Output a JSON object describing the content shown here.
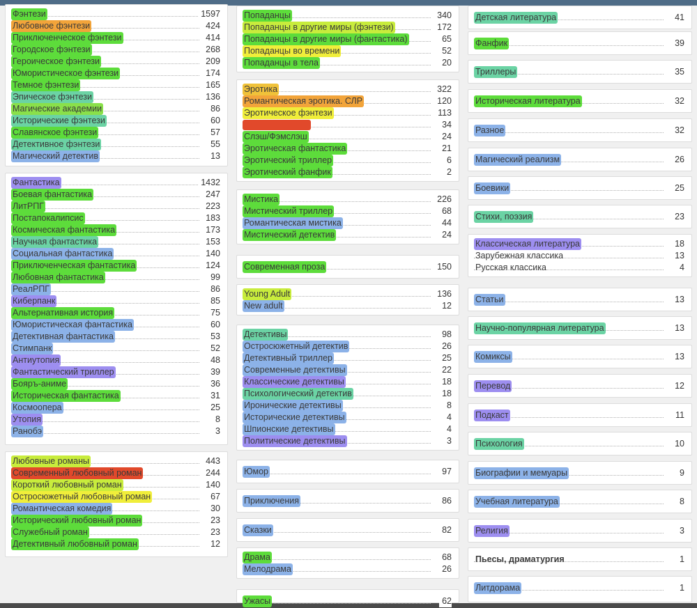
{
  "colors": {
    "green": "#5ddc3b",
    "lightgreen": "#8ae04a",
    "yellowgreen": "#c8ec3c",
    "yellow": "#f0ee3a",
    "orange": "#f2a43a",
    "red": "#e1492b",
    "teal": "#6bd3a4",
    "blue": "#8cb2e8",
    "lightblue": "#a9c9f1",
    "violet": "#9d8ef0"
  },
  "columns": [
    {
      "blocks": [
        {
          "items": [
            {
              "name": "Фэнтези",
              "count": "1597",
              "color": "#5ddc3b"
            },
            {
              "name": "Любовное фэнтези",
              "count": "424",
              "color": "#f2a43a"
            },
            {
              "name": "Приключенческое фэнтези",
              "count": "414",
              "color": "#5ddc3b"
            },
            {
              "name": "Городское фэнтези",
              "count": "268",
              "color": "#5ddc3b"
            },
            {
              "name": "Героическое фэнтези",
              "count": "209",
              "color": "#5ddc3b"
            },
            {
              "name": "Юмористическое фэнтези",
              "count": "174",
              "color": "#5ddc3b"
            },
            {
              "name": "Темное фэнтези",
              "count": "165",
              "color": "#5ddc3b"
            },
            {
              "name": "Эпическое фэнтези",
              "count": "136",
              "color": "#6bd3a4"
            },
            {
              "name": "Магические академии",
              "count": "86",
              "color": "#8ae04a"
            },
            {
              "name": "Исторические фэнтези",
              "count": "60",
              "color": "#6bd3a4"
            },
            {
              "name": "Славянское фэнтези",
              "count": "57",
              "color": "#5ddc3b"
            },
            {
              "name": "Детективное фэнтези",
              "count": "55",
              "color": "#6bd3a4"
            },
            {
              "name": "Магический детектив",
              "count": "13",
              "color": "#8cb2e8"
            }
          ]
        },
        {
          "items": [
            {
              "name": "Фантастика",
              "count": "1432",
              "color": "#9d8ef0"
            },
            {
              "name": "Боевая фантастика",
              "count": "247",
              "color": "#5ddc3b"
            },
            {
              "name": "ЛитРПГ",
              "count": "223",
              "color": "#5ddc3b"
            },
            {
              "name": "Постапокалипсис",
              "count": "183",
              "color": "#5ddc3b"
            },
            {
              "name": "Космическая фантастика",
              "count": "173",
              "color": "#5ddc3b"
            },
            {
              "name": "Научная фантастика",
              "count": "153",
              "color": "#6bd3a4"
            },
            {
              "name": "Социальная фантастика",
              "count": "140",
              "color": "#8cb2e8"
            },
            {
              "name": "Приключенческая фантастика",
              "count": "124",
              "color": "#5ddc3b"
            },
            {
              "name": "Любовная фантастика",
              "count": "99",
              "color": "#5ddc3b"
            },
            {
              "name": "РеалРПГ",
              "count": "86",
              "color": "#8cb2e8"
            },
            {
              "name": "Киберпанк",
              "count": "85",
              "color": "#9d8ef0"
            },
            {
              "name": "Альтернативная история",
              "count": "75",
              "color": "#5ddc3b"
            },
            {
              "name": "Юмористическая фантастика",
              "count": "60",
              "color": "#8cb2e8"
            },
            {
              "name": "Детективная фантастика",
              "count": "53",
              "color": "#8cb2e8"
            },
            {
              "name": "Стимпанк",
              "count": "52",
              "color": "#8cb2e8"
            },
            {
              "name": "Антиутопия",
              "count": "48",
              "color": "#9d8ef0"
            },
            {
              "name": "Фантастический триллер",
              "count": "39",
              "color": "#9d8ef0"
            },
            {
              "name": "Бояръ-аниме",
              "count": "36",
              "color": "#5ddc3b"
            },
            {
              "name": "Историческая фантастика",
              "count": "31",
              "color": "#5ddc3b"
            },
            {
              "name": "Космоопера",
              "count": "25",
              "color": "#8cb2e8"
            },
            {
              "name": "Утопия",
              "count": "8",
              "color": "#9d8ef0"
            },
            {
              "name": "Ранобэ",
              "count": "3",
              "color": "#8cb2e8"
            }
          ]
        },
        {
          "items": [
            {
              "name": "Любовные романы",
              "count": "443",
              "color": "#c8ec3c"
            },
            {
              "name": "Современный любовный роман",
              "count": "244",
              "color": "#e1492b"
            },
            {
              "name": "Короткий любовный роман",
              "count": "140",
              "color": "#c8ec3c"
            },
            {
              "name": "Остросюжетный любовный роман",
              "count": "67",
              "color": "#f0ee3a"
            },
            {
              "name": "Романтическая комедия",
              "count": "30",
              "color": "#8cb2e8"
            },
            {
              "name": "Исторический любовный роман",
              "count": "23",
              "color": "#5ddc3b"
            },
            {
              "name": "Служебный роман",
              "count": "23",
              "color": "#5ddc3b"
            },
            {
              "name": "Детективный любовный роман",
              "count": "12",
              "color": "#5ddc3b"
            }
          ]
        }
      ]
    },
    {
      "blocks": [
        {
          "items": [
            {
              "name": "Попаданцы",
              "count": "340",
              "color": "#5ddc3b"
            },
            {
              "name": "Попаданцы в другие миры (фэнтези)",
              "count": "172",
              "color": "#c8ec3c"
            },
            {
              "name": "Попаданцы в другие миры (фантастика)",
              "count": "65",
              "color": "#5ddc3b"
            },
            {
              "name": "Попаданцы во времени",
              "count": "52",
              "color": "#f0ee3a"
            },
            {
              "name": "Попаданцы в тела",
              "count": "20",
              "color": "#5ddc3b"
            }
          ]
        },
        {
          "items": [
            {
              "name": "Эротика",
              "count": "322",
              "color": "#f0c23a"
            },
            {
              "name": "Романтическая эротика. СЛР",
              "count": "120",
              "color": "#f2a43a"
            },
            {
              "name": "Эротическое фэнтези",
              "count": "113",
              "color": "#f0ee3a"
            },
            {
              "name": "",
              "count": "34",
              "color": "#e1492b"
            },
            {
              "name": "Слэш/Фэмслэш",
              "count": "24",
              "color": "#5ddc3b"
            },
            {
              "name": "Эротическая фантастика",
              "count": "21",
              "color": "#5ddc3b"
            },
            {
              "name": "Эротический триллер",
              "count": "6",
              "color": "#5ddc3b"
            },
            {
              "name": "Эротический фанфик",
              "count": "2",
              "color": "#5ddc3b"
            }
          ]
        },
        {
          "items": [
            {
              "name": "Мистика",
              "count": "226",
              "color": "#5ddc3b"
            },
            {
              "name": "Мистический триллер",
              "count": "68",
              "color": "#5ddc3b"
            },
            {
              "name": "Романтическая мистика",
              "count": "44",
              "color": "#8cb2e8"
            },
            {
              "name": "Мистический детектив",
              "count": "24",
              "color": "#5ddc3b"
            }
          ]
        },
        {
          "items": [
            {
              "name": "Современная проза",
              "count": "150",
              "color": "#5ddc3b"
            }
          ]
        },
        {
          "items": [
            {
              "name": "Young Adult",
              "count": "136",
              "color": "#c8ec3c"
            },
            {
              "name": "New adult",
              "count": "12",
              "color": "#8cb2e8"
            }
          ]
        },
        {
          "items": [
            {
              "name": "Детективы",
              "count": "98",
              "color": "#6bd3a4"
            },
            {
              "name": "Остросюжетный детектив",
              "count": "26",
              "color": "#8cb2e8"
            },
            {
              "name": "Детективный триллер",
              "count": "25",
              "color": "#8cb2e8"
            },
            {
              "name": "Современные детективы",
              "count": "22",
              "color": "#8cb2e8"
            },
            {
              "name": "Классические детективы",
              "count": "18",
              "color": "#9d8ef0"
            },
            {
              "name": "Психологический детектив",
              "count": "18",
              "color": "#6bd3a4"
            },
            {
              "name": "Иронические детективы",
              "count": "8",
              "color": "#8cb2e8"
            },
            {
              "name": "Исторические детективы",
              "count": "4",
              "color": "#8cb2e8"
            },
            {
              "name": "Шпионские детективы",
              "count": "4",
              "color": "#8cb2e8"
            },
            {
              "name": "Политические детективы",
              "count": "3",
              "color": "#9d8ef0"
            }
          ]
        },
        {
          "items": [
            {
              "name": "Юмор",
              "count": "97",
              "color": "#8cb2e8"
            }
          ]
        },
        {
          "items": [
            {
              "name": "Приключения",
              "count": "86",
              "color": "#8cb2e8"
            }
          ]
        },
        {
          "items": [
            {
              "name": "Сказки",
              "count": "82",
              "color": "#8cb2e8"
            }
          ]
        },
        {
          "items": [
            {
              "name": "Драма",
              "count": "68",
              "color": "#5ddc3b"
            },
            {
              "name": "Мелодрама",
              "count": "26",
              "color": "#8cb2e8"
            }
          ]
        },
        {
          "items": [
            {
              "name": "Ужасы",
              "count": "62",
              "color": "#5ddc3b"
            }
          ]
        }
      ]
    },
    {
      "blocks": [
        {
          "items": [
            {
              "name": "Детская литература",
              "count": "41",
              "color": "#6bd3a4"
            }
          ]
        },
        {
          "items": [
            {
              "name": "Фанфик",
              "count": "39",
              "color": "#5ddc3b"
            }
          ]
        },
        {
          "items": [
            {
              "name": "Триллеры",
              "count": "35",
              "color": "#6bd3a4"
            }
          ]
        },
        {
          "items": [
            {
              "name": "Историческая литература",
              "count": "32",
              "color": "#5ddc3b"
            }
          ]
        },
        {
          "items": [
            {
              "name": "Разное",
              "count": "32",
              "color": "#8cb2e8"
            }
          ]
        },
        {
          "items": [
            {
              "name": "Магический реализм",
              "count": "26",
              "color": "#8cb2e8"
            }
          ]
        },
        {
          "items": [
            {
              "name": "Боевики",
              "count": "25",
              "color": "#8cb2e8"
            }
          ]
        },
        {
          "items": [
            {
              "name": "Стихи, поэзия",
              "count": "23",
              "color": "#6bd3a4"
            }
          ]
        },
        {
          "items": [
            {
              "name": "Классическая литература",
              "count": "18",
              "color": "#9d8ef0"
            },
            {
              "name": "Зарубежная классика",
              "count": "13",
              "color": ""
            },
            {
              "name": "Русская классика",
              "count": "4",
              "color": ""
            }
          ]
        },
        {
          "items": [
            {
              "name": "Статьи",
              "count": "13",
              "color": "#8cb2e8"
            }
          ]
        },
        {
          "items": [
            {
              "name": "Научно-популярная литература",
              "count": "13",
              "color": "#6bd3a4"
            }
          ]
        },
        {
          "items": [
            {
              "name": "Комиксы",
              "count": "13",
              "color": "#8cb2e8"
            }
          ]
        },
        {
          "items": [
            {
              "name": "Перевод",
              "count": "12",
              "color": "#9d8ef0"
            }
          ]
        },
        {
          "items": [
            {
              "name": "Подкаст",
              "count": "11",
              "color": "#9d8ef0"
            }
          ]
        },
        {
          "items": [
            {
              "name": "Психология",
              "count": "10",
              "color": "#6bd3a4"
            }
          ]
        },
        {
          "items": [
            {
              "name": "Биографии и мемуары",
              "count": "9",
              "color": "#8cb2e8"
            }
          ]
        },
        {
          "items": [
            {
              "name": "Учебная литература",
              "count": "8",
              "color": "#8cb2e8"
            }
          ]
        },
        {
          "items": [
            {
              "name": "Религия",
              "count": "3",
              "color": "#9d8ef0"
            }
          ]
        },
        {
          "items": [
            {
              "name": "Пьесы, драматургия",
              "count": "1",
              "color": ""
            }
          ]
        },
        {
          "items": [
            {
              "name": "Литдорама",
              "count": "1",
              "color": "#8cb2e8"
            }
          ]
        }
      ]
    }
  ]
}
